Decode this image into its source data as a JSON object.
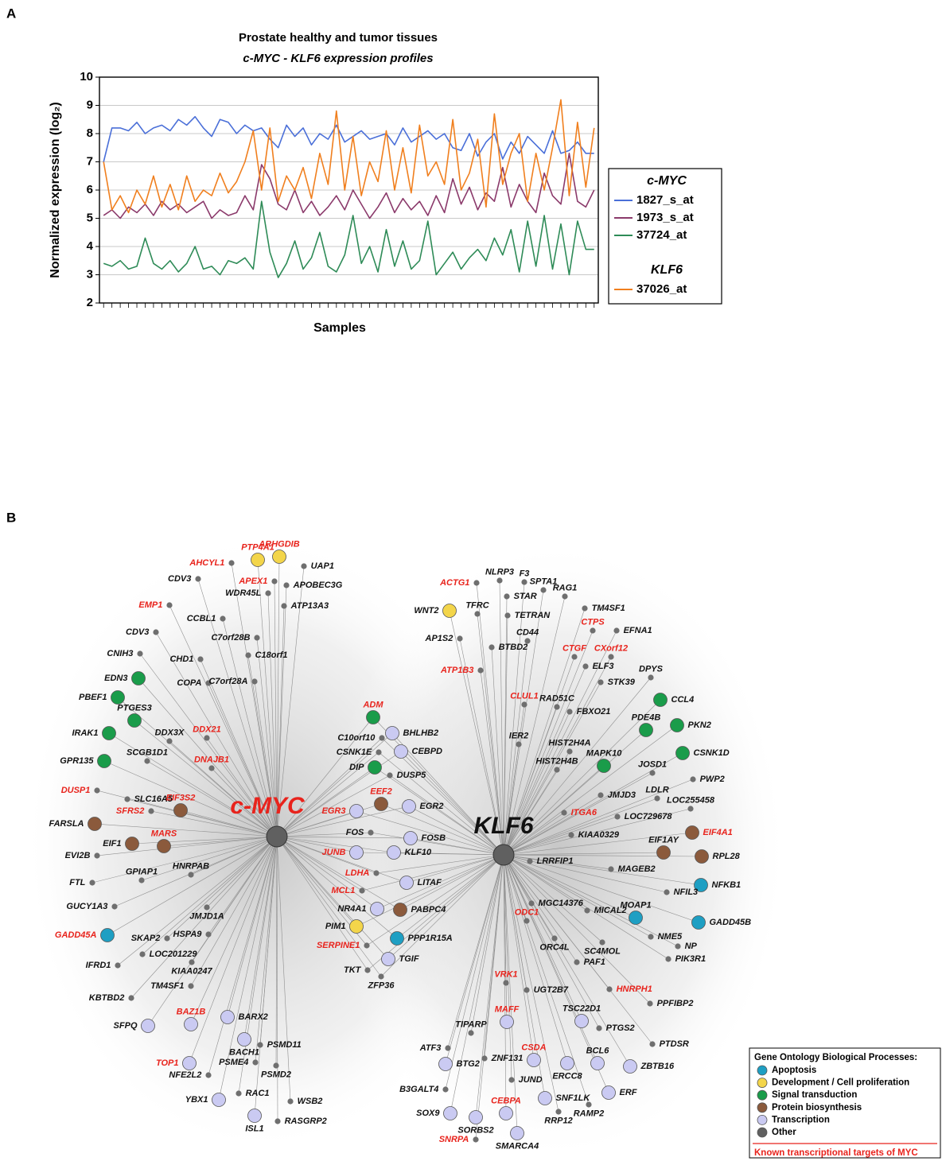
{
  "panel_labels": [
    "A",
    "B"
  ],
  "chart_data": {
    "type": "line",
    "title": "Prostate healthy and tumor tissues",
    "subtitle": "c-MYC - KLF6 expression profiles",
    "y_label": "Normalized expression (log₂)",
    "x_label": "Samples",
    "categories": [
      null,
      null,
      null,
      null,
      null,
      null,
      null,
      null,
      null,
      null,
      null,
      null,
      null,
      null,
      null,
      null,
      null,
      null,
      null,
      null,
      null,
      null,
      null,
      null,
      null,
      null,
      null,
      null,
      null,
      null,
      null,
      null,
      null,
      null,
      null,
      null,
      null,
      null,
      null,
      null,
      null,
      null,
      null,
      null,
      null,
      null,
      null,
      null,
      null,
      null,
      null,
      null,
      null,
      null,
      null,
      null,
      null,
      null,
      null,
      null
    ],
    "ylim": [
      2,
      10
    ],
    "yticks": [
      2,
      3,
      4,
      5,
      6,
      7,
      8,
      9,
      10
    ],
    "grid": true,
    "legend": "right",
    "series": [
      {
        "name": "1827_s_at",
        "group": "c-MYC",
        "color": "#4a6fd8",
        "values": [
          7.0,
          8.2,
          8.2,
          8.1,
          8.4,
          8.0,
          8.2,
          8.3,
          8.1,
          8.5,
          8.3,
          8.6,
          8.2,
          7.9,
          8.5,
          8.4,
          8.0,
          8.3,
          8.1,
          8.2,
          7.8,
          7.5,
          8.3,
          7.9,
          8.2,
          7.6,
          8.0,
          7.8,
          8.3,
          7.7,
          7.9,
          8.1,
          7.8,
          7.9,
          8.0,
          7.6,
          8.2,
          7.7,
          7.9,
          8.1,
          7.8,
          8.0,
          7.5,
          7.4,
          8.0,
          7.2,
          7.7,
          8.0,
          7.1,
          7.7,
          7.3,
          7.9,
          7.6,
          7.3,
          8.1,
          7.3,
          7.4,
          7.7,
          7.3,
          7.3
        ]
      },
      {
        "name": "1973_s_at",
        "group": "c-MYC",
        "color": "#8b3a6b",
        "values": [
          5.1,
          5.3,
          5.0,
          5.4,
          5.2,
          5.5,
          5.1,
          5.6,
          5.3,
          5.5,
          5.2,
          5.4,
          5.6,
          5.0,
          5.3,
          5.1,
          5.2,
          5.8,
          5.3,
          6.9,
          6.4,
          5.5,
          5.3,
          6.0,
          5.2,
          5.6,
          5.1,
          5.4,
          5.8,
          5.3,
          6.0,
          5.5,
          5.0,
          5.4,
          5.9,
          5.2,
          5.7,
          5.3,
          5.6,
          5.1,
          5.8,
          5.2,
          6.4,
          5.5,
          6.1,
          5.3,
          5.9,
          5.6,
          6.8,
          5.4,
          6.2,
          5.6,
          5.2,
          6.6,
          5.8,
          5.5,
          7.3,
          5.6,
          5.4,
          6.0
        ]
      },
      {
        "name": "37724_at",
        "group": "c-MYC",
        "color": "#2e8b57",
        "values": [
          3.4,
          3.3,
          3.5,
          3.2,
          3.3,
          4.3,
          3.4,
          3.2,
          3.5,
          3.1,
          3.4,
          4.0,
          3.2,
          3.3,
          3.0,
          3.5,
          3.4,
          3.6,
          3.2,
          5.6,
          3.8,
          2.9,
          3.4,
          4.2,
          3.2,
          3.6,
          4.5,
          3.3,
          3.1,
          3.7,
          5.1,
          3.4,
          4.0,
          3.1,
          4.6,
          3.3,
          4.2,
          3.2,
          3.5,
          4.9,
          3.0,
          3.4,
          3.8,
          3.2,
          3.6,
          3.9,
          3.5,
          4.3,
          3.7,
          4.6,
          3.1,
          4.9,
          3.3,
          5.1,
          3.2,
          4.8,
          3.0,
          4.9,
          3.9,
          3.9
        ]
      },
      {
        "name": "37026_at",
        "group": "KLF6",
        "color": "#f07f1e",
        "values": [
          7.0,
          5.3,
          5.8,
          5.2,
          6.0,
          5.5,
          6.5,
          5.4,
          6.2,
          5.3,
          6.5,
          5.6,
          6.0,
          5.8,
          6.6,
          5.9,
          6.3,
          7.0,
          8.1,
          6.0,
          8.2,
          5.6,
          6.5,
          6.0,
          6.8,
          5.7,
          7.3,
          6.2,
          8.8,
          6.0,
          7.9,
          5.8,
          7.0,
          6.3,
          8.1,
          6.0,
          7.5,
          5.9,
          8.3,
          6.5,
          7.0,
          6.2,
          8.5,
          6.0,
          6.6,
          7.8,
          5.4,
          8.7,
          6.2,
          7.3,
          8.0,
          5.6,
          7.3,
          6.0,
          7.5,
          9.2,
          5.8,
          8.4,
          6.1,
          8.2
        ]
      }
    ]
  },
  "network": {
    "hubs": [
      {
        "label": "c-MYC",
        "target": true
      },
      {
        "label": "KLF6"
      }
    ],
    "legend": {
      "title": "Gene Ontology Biological Processes:",
      "processes": [
        {
          "name": "Apoptosis",
          "color": "#1e9fc3"
        },
        {
          "name": "Development / Cell proliferation",
          "color": "#f3d54a"
        },
        {
          "name": "Signal transduction",
          "color": "#1a9c4a"
        },
        {
          "name": "Protein biosynthesis",
          "color": "#8b5a3c"
        },
        {
          "name": "Transcription",
          "color": "#cacaf2"
        },
        {
          "name": "Other",
          "color": "#606060"
        }
      ],
      "target_note": "Known transcriptional targets of MYC"
    },
    "myc_nodes": [
      {
        "label": "AHCYL1",
        "target": true
      },
      {
        "label": "PTP4A1",
        "process": "Development / Cell proliferation",
        "target": true
      },
      {
        "label": "ARHGDIB",
        "process": "Development / Cell proliferation",
        "target": true
      },
      {
        "label": "UAP1"
      },
      {
        "label": "CDV3"
      },
      {
        "label": "APEX1",
        "target": true
      },
      {
        "label": "APOBEC3G"
      },
      {
        "label": "WDR45L"
      },
      {
        "label": "ATP13A3"
      },
      {
        "label": "EMP1",
        "target": true
      },
      {
        "label": "CCBL1"
      },
      {
        "label": "C7orf28B"
      },
      {
        "label": "CDV3"
      },
      {
        "label": "C18orf1"
      },
      {
        "label": "CNIH3"
      },
      {
        "label": "CHD1"
      },
      {
        "label": "EDN3",
        "process": "Signal transduction"
      },
      {
        "label": "COPA"
      },
      {
        "label": "C7orf28A"
      },
      {
        "label": "PBEF1",
        "process": "Signal transduction"
      },
      {
        "label": "PTGES3",
        "process": "Signal transduction"
      },
      {
        "label": "DDX3X"
      },
      {
        "label": "DDX21",
        "target": true
      },
      {
        "label": "IRAK1",
        "process": "Signal transduction"
      },
      {
        "label": "SCGB1D1"
      },
      {
        "label": "GPR135",
        "process": "Signal transduction"
      },
      {
        "label": "DNAJB1",
        "target": true
      },
      {
        "label": "DUSP1",
        "target": true
      },
      {
        "label": "SLC16A5"
      },
      {
        "label": "SFRS2",
        "target": true
      },
      {
        "label": "EIF3S2",
        "process": "Protein biosynthesis",
        "target": true
      },
      {
        "label": "FARSLA",
        "process": "Protein biosynthesis"
      },
      {
        "label": "EIF1",
        "process": "Protein biosynthesis"
      },
      {
        "label": "MARS",
        "process": "Protein biosynthesis",
        "target": true
      },
      {
        "label": "EVI2B"
      },
      {
        "label": "FTL"
      },
      {
        "label": "GPIAP1"
      },
      {
        "label": "HNRPAB"
      },
      {
        "label": "GUCY1A3"
      },
      {
        "label": "GADD45A",
        "process": "Apoptosis",
        "target": true
      },
      {
        "label": "SKAP2"
      },
      {
        "label": "HSPA9"
      },
      {
        "label": "JMJD1A"
      },
      {
        "label": "LOC201229"
      },
      {
        "label": "IFRD1"
      },
      {
        "label": "KIAA0247"
      },
      {
        "label": "TM4SF1"
      },
      {
        "label": "KBTBD2"
      },
      {
        "label": "BAZ1B",
        "process": "Transcription",
        "target": true
      },
      {
        "label": "BARX2",
        "process": "Transcription"
      },
      {
        "label": "SFPQ",
        "process": "Transcription"
      },
      {
        "label": "TOP1",
        "process": "Transcription",
        "target": true
      },
      {
        "label": "BACH1",
        "process": "Transcription"
      },
      {
        "label": "PSMD11"
      },
      {
        "label": "NFE2L2"
      },
      {
        "label": "PSME4"
      },
      {
        "label": "PSMD2"
      },
      {
        "label": "RAC1"
      },
      {
        "label": "YBX1",
        "process": "Transcription"
      },
      {
        "label": "WSB2"
      },
      {
        "label": "ISL1",
        "process": "Transcription"
      },
      {
        "label": "RASGRP2"
      }
    ],
    "shared_nodes": [
      {
        "label": "ADM",
        "process": "Signal transduction",
        "target": true
      },
      {
        "label": "C10orf10"
      },
      {
        "label": "BHLHB2",
        "process": "Transcription"
      },
      {
        "label": "CSNK1E"
      },
      {
        "label": "CEBPD",
        "process": "Transcription"
      },
      {
        "label": "DIP",
        "process": "Signal transduction"
      },
      {
        "label": "DUSP5"
      },
      {
        "label": "EEF2",
        "process": "Protein biosynthesis",
        "target": true
      },
      {
        "label": "EGR3",
        "process": "Transcription",
        "target": true
      },
      {
        "label": "EGR2",
        "process": "Transcription"
      },
      {
        "label": "FOS"
      },
      {
        "label": "FOSB",
        "process": "Transcription"
      },
      {
        "label": "JUNB",
        "process": "Transcription",
        "target": true
      },
      {
        "label": "KLF10",
        "process": "Transcription"
      },
      {
        "label": "LDHA",
        "target": true
      },
      {
        "label": "LITAF",
        "process": "Transcription"
      },
      {
        "label": "MCL1",
        "target": true
      },
      {
        "label": "NR4A1",
        "process": "Transcription"
      },
      {
        "label": "PABPC4",
        "process": "Protein biosynthesis"
      },
      {
        "label": "PIM1",
        "process": "Development / Cell proliferation"
      },
      {
        "label": "PPP1R15A",
        "process": "Apoptosis"
      },
      {
        "label": "SERPINE1",
        "target": true
      },
      {
        "label": "TGIF",
        "process": "Transcription"
      },
      {
        "label": "TKT"
      },
      {
        "label": "ZFP36"
      }
    ],
    "klf6_nodes": [
      {
        "label": "ACTG1",
        "target": true
      },
      {
        "label": "NLRP3"
      },
      {
        "label": "F3"
      },
      {
        "label": "SPTA1"
      },
      {
        "label": "WNT2",
        "process": "Development / Cell proliferation"
      },
      {
        "label": "TFRC"
      },
      {
        "label": "RAG1"
      },
      {
        "label": "TM4SF1"
      },
      {
        "label": "STAR"
      },
      {
        "label": "TETRAN"
      },
      {
        "label": "AP1S2"
      },
      {
        "label": "CD44"
      },
      {
        "label": "CTPS",
        "target": true
      },
      {
        "label": "EFNA1"
      },
      {
        "label": "BTBD2"
      },
      {
        "label": "CTGF",
        "target": true
      },
      {
        "label": "CXorf12",
        "target": true
      },
      {
        "label": "ELF3"
      },
      {
        "label": "ATP1B3",
        "target": true
      },
      {
        "label": "STK39"
      },
      {
        "label": "DPYS"
      },
      {
        "label": "CLUL1",
        "target": true
      },
      {
        "label": "RAD51C"
      },
      {
        "label": "CCL4",
        "process": "Signal transduction"
      },
      {
        "label": "FBXO21"
      },
      {
        "label": "IER2"
      },
      {
        "label": "PDE4B",
        "process": "Signal transduction"
      },
      {
        "label": "PKN2",
        "process": "Signal transduction"
      },
      {
        "label": "HIST2H4A"
      },
      {
        "label": "CSNK1D",
        "process": "Signal transduction"
      },
      {
        "label": "MAPK10",
        "process": "Signal transduction"
      },
      {
        "label": "JOSD1"
      },
      {
        "label": "HIST2H4B"
      },
      {
        "label": "PWP2"
      },
      {
        "label": "JMJD3"
      },
      {
        "label": "LDLR"
      },
      {
        "label": "LOC255458"
      },
      {
        "label": "ITGA6",
        "target": true
      },
      {
        "label": "LOC729678"
      },
      {
        "label": "EIF4A1",
        "process": "Protein biosynthesis",
        "target": true
      },
      {
        "label": "KIAA0329"
      },
      {
        "label": "EIF1AY",
        "process": "Protein biosynthesis"
      },
      {
        "label": "RPL28",
        "process": "Protein biosynthesis"
      },
      {
        "label": "LRRFIP1"
      },
      {
        "label": "MAGEB2"
      },
      {
        "label": "NFKB1",
        "process": "Apoptosis"
      },
      {
        "label": "NFIL3"
      },
      {
        "label": "MGC14376"
      },
      {
        "label": "MICAL2"
      },
      {
        "label": "MOAP1",
        "process": "Apoptosis"
      },
      {
        "label": "GADD45B",
        "process": "Apoptosis"
      },
      {
        "label": "NME5"
      },
      {
        "label": "NP"
      },
      {
        "label": "ODC1",
        "target": true
      },
      {
        "label": "ORC4L"
      },
      {
        "label": "SC4MOL"
      },
      {
        "label": "PIK3R1"
      },
      {
        "label": "PAF1"
      },
      {
        "label": "VRK1",
        "target": true
      },
      {
        "label": "UGT2B7"
      },
      {
        "label": "HNRPH1",
        "target": true
      },
      {
        "label": "PPFIBP2"
      },
      {
        "label": "TIPARP"
      },
      {
        "label": "MAFF",
        "process": "Transcription",
        "target": true
      },
      {
        "label": "TSC22D1",
        "process": "Transcription"
      },
      {
        "label": "PTGS2"
      },
      {
        "label": "CSDA",
        "process": "Transcription",
        "target": true
      },
      {
        "label": "ATF3"
      },
      {
        "label": "BTG2",
        "process": "Transcription"
      },
      {
        "label": "ZNF131"
      },
      {
        "label": "ERCC8",
        "process": "Transcription"
      },
      {
        "label": "BCL6",
        "process": "Transcription"
      },
      {
        "label": "PTDSR"
      },
      {
        "label": "ZBTB16",
        "process": "Transcription"
      },
      {
        "label": "JUND"
      },
      {
        "label": "B3GALT4"
      },
      {
        "label": "ERF",
        "process": "Transcription"
      },
      {
        "label": "RAMP2"
      },
      {
        "label": "SOX9",
        "process": "Transcription"
      },
      {
        "label": "SORBS2",
        "process": "Transcription"
      },
      {
        "label": "CEBPA",
        "process": "Transcription",
        "target": true
      },
      {
        "label": "SNF1LK",
        "process": "Transcription"
      },
      {
        "label": "RRP12"
      },
      {
        "label": "SNRPA",
        "target": true
      },
      {
        "label": "SMARCA4",
        "process": "Transcription"
      }
    ]
  }
}
